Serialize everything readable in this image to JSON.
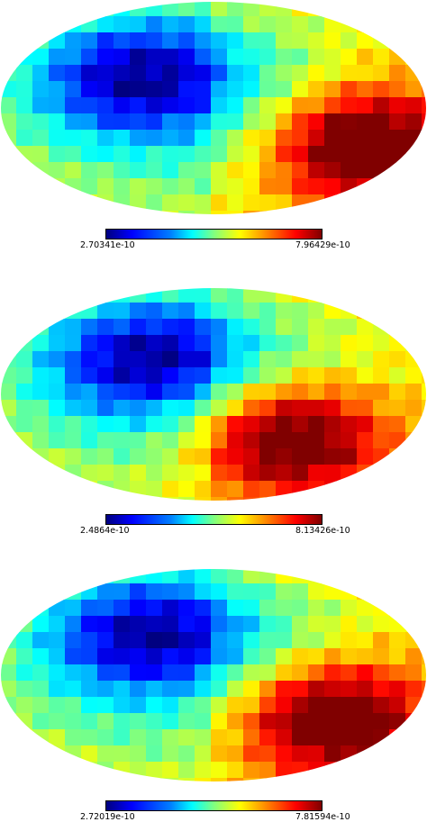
{
  "figure": {
    "panels": [
      {
        "colorbar": {
          "min_label": "2.70341e-10",
          "max_label": "7.96429e-10"
        },
        "hotspot_side": "right-lower"
      },
      {
        "colorbar": {
          "min_label": "2.4864e-10",
          "max_label": "8.13426e-10"
        },
        "hotspot_side": "center-right"
      },
      {
        "colorbar": {
          "min_label": "2.72019e-10",
          "max_label": "7.81594e-10"
        },
        "hotspot_side": "right-lower"
      }
    ],
    "colormap": "jet",
    "colors": {
      "low": "#00007f",
      "mid": "#80ff80",
      "high": "#7f0000"
    }
  }
}
